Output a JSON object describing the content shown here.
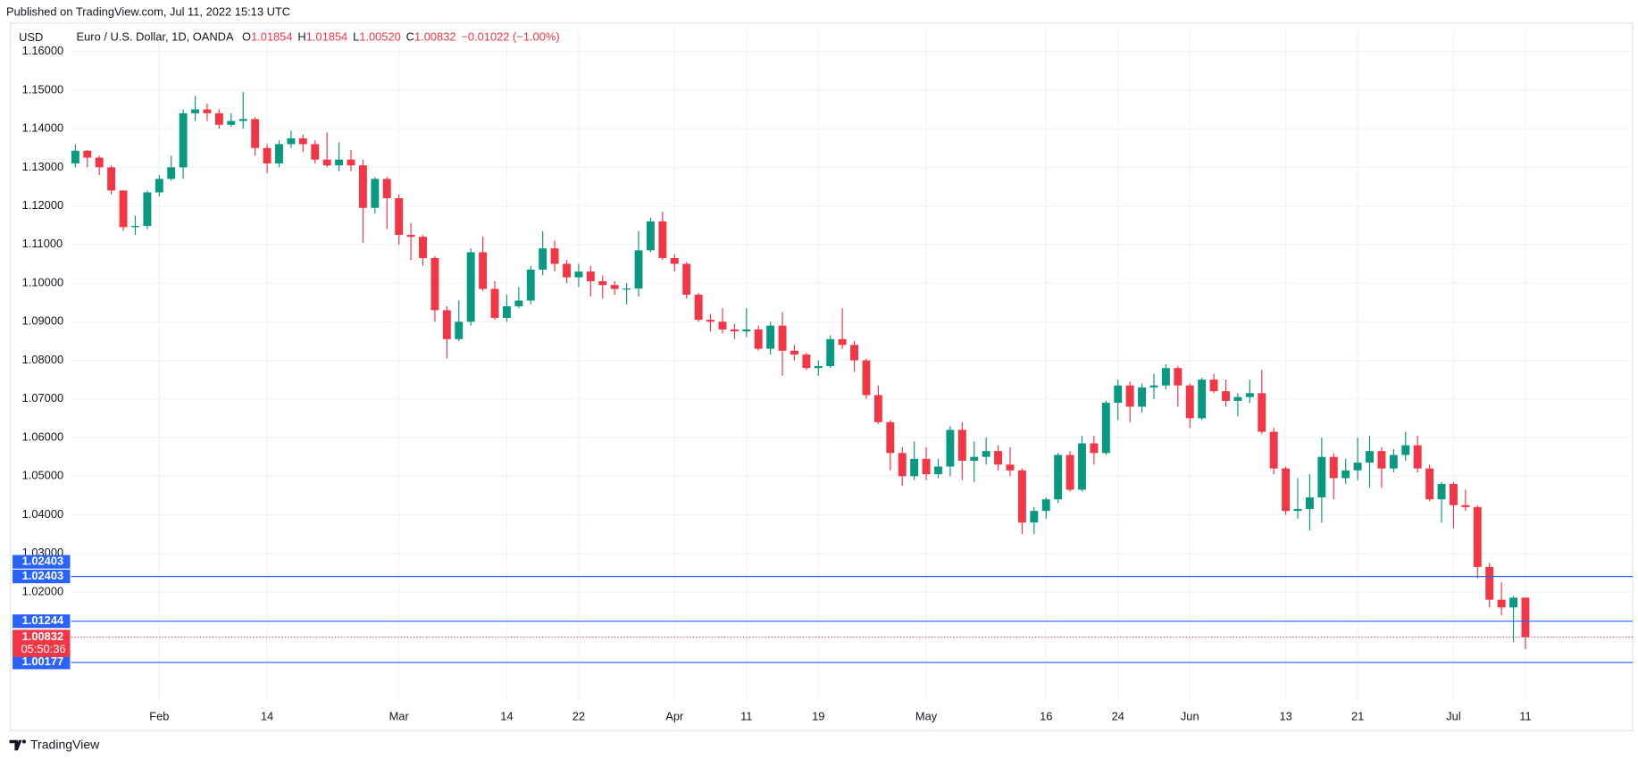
{
  "header": {
    "published": "Published on TradingView.com, Jul 11, 2022 15:13 UTC",
    "brand": "TradingView"
  },
  "chart_data": {
    "type": "candlestick",
    "currency": "USD",
    "legend": {
      "symbol": "Euro / U.S. Dollar, 1D, OANDA",
      "items": [
        {
          "key": "O",
          "value": "1.01854"
        },
        {
          "key": "H",
          "value": "1.01854"
        },
        {
          "key": "L",
          "value": "1.00520"
        },
        {
          "key": "C",
          "value": "1.00832"
        }
      ],
      "change": "−0.01022 (−1.00%)"
    },
    "up_color": "#089981",
    "down_color": "#f23645",
    "line_color": "#2962ff",
    "grid": true,
    "ylim": [
      0.9917,
      1.1657
    ],
    "yticks": [
      {
        "value": 1.02,
        "label": "1.02000"
      },
      {
        "value": 1.03,
        "label": "1.03000"
      },
      {
        "value": 1.04,
        "label": "1.04000"
      },
      {
        "value": 1.05,
        "label": "1.05000"
      },
      {
        "value": 1.06,
        "label": "1.06000"
      },
      {
        "value": 1.07,
        "label": "1.07000"
      },
      {
        "value": 1.08,
        "label": "1.08000"
      },
      {
        "value": 1.09,
        "label": "1.09000"
      },
      {
        "value": 1.1,
        "label": "1.10000"
      },
      {
        "value": 1.11,
        "label": "1.11000"
      },
      {
        "value": 1.12,
        "label": "1.12000"
      },
      {
        "value": 1.13,
        "label": "1.13000"
      },
      {
        "value": 1.14,
        "label": "1.14000"
      },
      {
        "value": 1.15,
        "label": "1.15000"
      },
      {
        "value": 1.16,
        "label": "1.16000"
      }
    ],
    "categories": [
      null,
      null,
      null,
      null,
      null,
      null,
      null,
      "Feb",
      null,
      null,
      null,
      null,
      null,
      null,
      null,
      null,
      "14",
      null,
      null,
      null,
      null,
      null,
      null,
      null,
      null,
      null,
      null,
      "Mar",
      null,
      null,
      null,
      null,
      null,
      null,
      null,
      null,
      "14",
      null,
      null,
      null,
      null,
      null,
      "22",
      null,
      null,
      null,
      null,
      null,
      null,
      null,
      "Apr",
      null,
      null,
      null,
      null,
      null,
      "11",
      null,
      null,
      null,
      null,
      null,
      "19",
      null,
      null,
      null,
      null,
      null,
      null,
      null,
      null,
      "May",
      null,
      null,
      null,
      null,
      null,
      null,
      null,
      null,
      null,
      "16",
      null,
      null,
      null,
      null,
      null,
      "24",
      null,
      null,
      null,
      null,
      null,
      "Jun",
      null,
      null,
      null,
      null,
      null,
      null,
      null,
      "13",
      null,
      null,
      null,
      null,
      null,
      "21",
      null,
      null,
      null,
      null,
      null,
      null,
      null,
      "Jul",
      null,
      null,
      null,
      null,
      null,
      "11"
    ],
    "open": [
      1.131,
      1.1343,
      1.1325,
      1.13,
      1.124,
      1.1145,
      1.1148,
      1.1235,
      1.127,
      1.13,
      1.144,
      1.145,
      1.144,
      1.141,
      1.142,
      1.1425,
      1.135,
      1.131,
      1.136,
      1.1375,
      1.136,
      1.132,
      1.1305,
      1.132,
      1.1305,
      1.1195,
      1.127,
      1.122,
      1.1125,
      1.112,
      1.1065,
      1.093,
      1.0855,
      1.09,
      1.108,
      1.0985,
      1.091,
      1.094,
      1.0955,
      1.1035,
      1.109,
      1.105,
      1.1015,
      1.103,
      1.1005,
      1.0995,
      1.0985,
      1.0986,
      1.1085,
      1.116,
      1.1065,
      1.105,
      1.097,
      1.0905,
      1.09,
      1.088,
      1.0875,
      1.088,
      1.083,
      1.089,
      1.0825,
      1.0815,
      1.078,
      1.0785,
      1.0855,
      1.084,
      1.08,
      1.071,
      1.064,
      1.056,
      1.05,
      1.0545,
      1.0505,
      1.0525,
      1.062,
      1.054,
      1.055,
      1.0565,
      1.053,
      1.0515,
      1.038,
      1.041,
      1.044,
      1.0555,
      1.0465,
      1.0585,
      1.056,
      1.069,
      1.0735,
      1.068,
      1.073,
      1.0735,
      1.078,
      1.0735,
      1.065,
      1.075,
      1.072,
      1.0695,
      1.0705,
      1.0715,
      1.0615,
      1.052,
      1.041,
      1.0415,
      1.0445,
      1.055,
      1.0495,
      1.0515,
      1.0535,
      1.0565,
      1.052,
      1.0555,
      1.058,
      1.052,
      1.044,
      1.048,
      1.0425,
      1.042,
      1.0265,
      1.018,
      1.016,
      1.01854
    ],
    "high": [
      1.136,
      1.1345,
      1.133,
      1.1305,
      1.124,
      1.1175,
      1.124,
      1.128,
      1.133,
      1.145,
      1.1485,
      1.1465,
      1.145,
      1.144,
      1.1495,
      1.143,
      1.136,
      1.137,
      1.1395,
      1.1385,
      1.137,
      1.139,
      1.1365,
      1.1345,
      1.132,
      1.1275,
      1.1275,
      1.123,
      1.1155,
      1.1125,
      1.107,
      1.094,
      1.0955,
      1.109,
      1.112,
      1.1005,
      1.097,
      1.099,
      1.1045,
      1.1135,
      1.111,
      1.106,
      1.105,
      1.1045,
      1.102,
      1.1005,
      1.1,
      1.1135,
      1.117,
      1.1185,
      1.1075,
      1.1055,
      1.0975,
      1.092,
      1.0935,
      1.0895,
      1.0935,
      1.089,
      1.09,
      1.0925,
      1.084,
      1.082,
      1.08,
      1.0865,
      1.0935,
      1.085,
      1.0805,
      1.0735,
      1.0645,
      1.0575,
      1.059,
      1.0575,
      1.0545,
      1.063,
      1.064,
      1.059,
      1.06,
      1.058,
      1.0575,
      1.052,
      1.042,
      1.0445,
      1.056,
      1.0565,
      1.0605,
      1.0605,
      1.0695,
      1.075,
      1.0745,
      1.074,
      1.0765,
      1.079,
      1.0785,
      1.074,
      1.0755,
      1.0765,
      1.075,
      1.0715,
      1.075,
      1.0775,
      1.0625,
      1.0525,
      1.0495,
      1.0505,
      1.06,
      1.056,
      1.0545,
      1.06,
      1.0605,
      1.0575,
      1.057,
      1.0615,
      1.0605,
      1.053,
      1.0485,
      1.0485,
      1.0465,
      1.0425,
      1.0275,
      1.0225,
      1.019,
      1.01854
    ],
    "low": [
      1.13,
      1.13,
      1.128,
      1.123,
      1.1135,
      1.1125,
      1.114,
      1.1225,
      1.1265,
      1.127,
      1.142,
      1.142,
      1.14,
      1.1405,
      1.14,
      1.133,
      1.1285,
      1.13,
      1.135,
      1.134,
      1.131,
      1.13,
      1.129,
      1.129,
      1.1105,
      1.118,
      1.114,
      1.11,
      1.106,
      1.1045,
      1.09,
      1.0805,
      1.085,
      1.089,
      1.098,
      1.0905,
      1.09,
      1.0935,
      1.0945,
      1.102,
      1.103,
      1.1,
      1.099,
      1.0965,
      1.096,
      1.097,
      1.0945,
      1.0965,
      1.108,
      1.106,
      1.103,
      1.096,
      1.09,
      1.0875,
      1.087,
      1.0855,
      1.086,
      1.0825,
      1.0815,
      1.076,
      1.08,
      1.0775,
      1.076,
      1.078,
      1.083,
      1.077,
      1.07,
      1.0635,
      1.0515,
      1.0475,
      1.049,
      1.049,
      1.0495,
      1.05,
      1.049,
      1.0485,
      1.053,
      1.0515,
      1.05,
      1.035,
      1.035,
      1.039,
      1.043,
      1.046,
      1.046,
      1.053,
      1.0555,
      1.0645,
      1.064,
      1.0665,
      1.07,
      1.0725,
      1.068,
      1.0625,
      1.0645,
      1.0715,
      1.068,
      1.0655,
      1.069,
      1.061,
      1.0505,
      1.04,
      1.039,
      1.036,
      1.038,
      1.044,
      1.048,
      1.049,
      1.047,
      1.047,
      1.051,
      1.054,
      1.051,
      1.0435,
      1.038,
      1.0365,
      1.041,
      1.0235,
      1.016,
      1.014,
      1.007,
      1.0052
    ],
    "close": [
      1.1343,
      1.1325,
      1.13,
      1.124,
      1.1145,
      1.1148,
      1.1235,
      1.127,
      1.13,
      1.144,
      1.145,
      1.144,
      1.141,
      1.142,
      1.1425,
      1.135,
      1.131,
      1.136,
      1.1375,
      1.136,
      1.132,
      1.1305,
      1.132,
      1.1305,
      1.1195,
      1.127,
      1.122,
      1.1125,
      1.112,
      1.1065,
      1.093,
      1.0855,
      1.09,
      1.108,
      1.0985,
      1.091,
      1.094,
      1.0955,
      1.1035,
      1.109,
      1.105,
      1.1015,
      1.103,
      1.1005,
      1.0995,
      1.0985,
      1.0986,
      1.1085,
      1.116,
      1.1065,
      1.105,
      1.097,
      1.0905,
      1.09,
      1.088,
      1.0875,
      1.088,
      1.083,
      1.089,
      1.0825,
      1.0815,
      1.078,
      1.0785,
      1.0855,
      1.084,
      1.08,
      1.071,
      1.064,
      1.056,
      1.05,
      1.0545,
      1.0505,
      1.0525,
      1.062,
      1.054,
      1.055,
      1.0565,
      1.053,
      1.0515,
      1.038,
      1.041,
      1.044,
      1.0555,
      1.0465,
      1.0585,
      1.056,
      1.069,
      1.0735,
      1.068,
      1.073,
      1.0735,
      1.078,
      1.0735,
      1.065,
      1.075,
      1.072,
      1.0695,
      1.0705,
      1.0715,
      1.0615,
      1.052,
      1.041,
      1.0415,
      1.0445,
      1.055,
      1.0495,
      1.0515,
      1.0535,
      1.0565,
      1.052,
      1.0555,
      1.058,
      1.052,
      1.044,
      1.048,
      1.0425,
      1.042,
      1.0265,
      1.018,
      1.016,
      1.01854,
      1.00832
    ],
    "price_lines": [
      1.02403,
      1.02403,
      1.01244,
      1.00177
    ],
    "countdown": "05:50:36"
  }
}
